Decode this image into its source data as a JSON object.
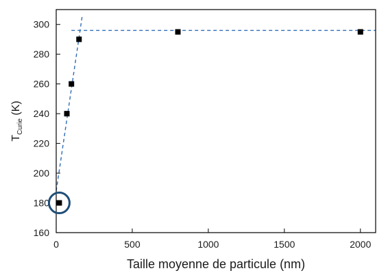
{
  "chart_data": {
    "type": "scatter",
    "title": "",
    "xlabel": "Taille moyenne de particule (nm)",
    "ylabel": {
      "main": "T",
      "subscript": "Curie",
      "unit": " (K)"
    },
    "xlim": [
      0,
      2100
    ],
    "ylim": [
      160,
      310
    ],
    "x_ticks": [
      0,
      500,
      1000,
      1500,
      2000
    ],
    "y_ticks": [
      160,
      180,
      200,
      220,
      240,
      260,
      280,
      300
    ],
    "grid": false,
    "series": [
      {
        "marker": "square",
        "color": "#000000",
        "points": [
          {
            "x": 20,
            "y": 180
          },
          {
            "x": 70,
            "y": 240
          },
          {
            "x": 100,
            "y": 260
          },
          {
            "x": 150,
            "y": 290
          },
          {
            "x": 800,
            "y": 295
          },
          {
            "x": 2000,
            "y": 295
          }
        ]
      }
    ],
    "fit_lines": [
      {
        "style": "dashed",
        "color": "#2e6cb5",
        "from": {
          "x": 0,
          "y": 188
        },
        "to": {
          "x": 170,
          "y": 305
        }
      },
      {
        "style": "dashed",
        "color": "#2e6cb5",
        "from": {
          "x": 100,
          "y": 296
        },
        "to": {
          "x": 2100,
          "y": 296
        }
      }
    ],
    "highlight": {
      "shape": "circle",
      "color": "#1f4e79",
      "x": 20,
      "y": 180
    }
  }
}
